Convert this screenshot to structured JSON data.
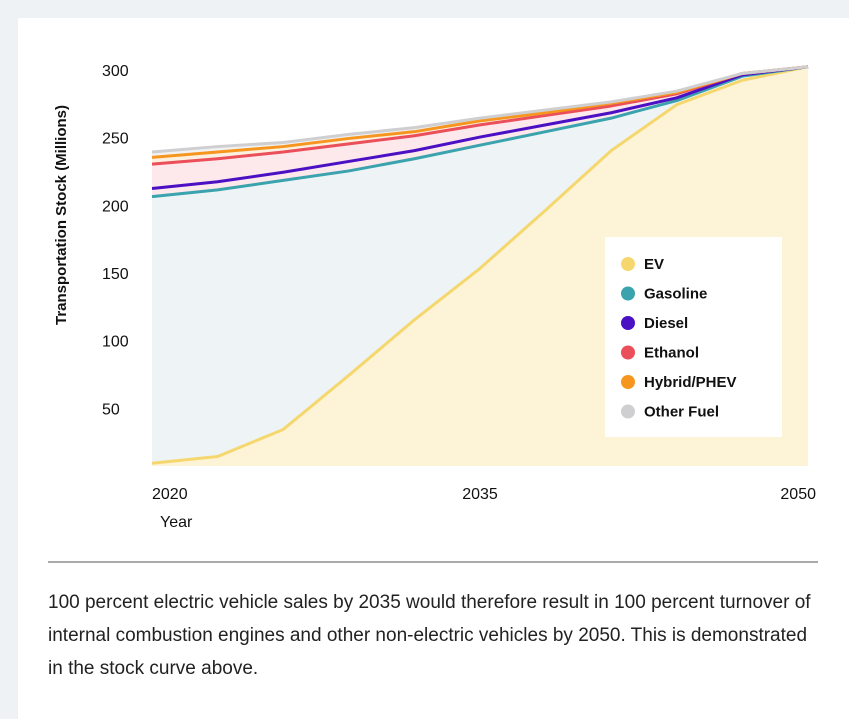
{
  "chart_data": {
    "type": "stacked_area",
    "x": [
      2020,
      2023,
      2026,
      2029,
      2032,
      2035,
      2038,
      2041,
      2044,
      2047,
      2050
    ],
    "series": [
      {
        "name": "EV",
        "color": "#f5d76e",
        "fill": "#fdf4d8",
        "values": [
          10,
          15,
          35,
          75,
          116,
          154,
          197,
          241,
          275,
          293,
          303
        ]
      },
      {
        "name": "Gasoline",
        "color": "#3aa3ad",
        "fill": "#eef4f6",
        "values": [
          197,
          197,
          184,
          151,
          119,
          91,
          58,
          24,
          3,
          3,
          0
        ]
      },
      {
        "name": "Diesel",
        "color": "#4b0fc4",
        "fill": "#fde8ec",
        "values": [
          6,
          6,
          6,
          7,
          6,
          6,
          5,
          4,
          2,
          1,
          0
        ]
      },
      {
        "name": "Ethanol",
        "color": "#ea4f5a",
        "fill": "#fde8ec",
        "values": [
          18,
          17,
          15,
          13,
          11,
          9,
          7,
          5,
          3,
          1,
          0
        ]
      },
      {
        "name": "Hybrid/PHEV",
        "color": "#f7961f",
        "fill": "#fef0df",
        "values": [
          5,
          5,
          4,
          4,
          3,
          3,
          2,
          2,
          1,
          0,
          0
        ]
      },
      {
        "name": "Other Fuel",
        "color": "#cfcfd2",
        "fill": "#f2f2f3",
        "values": [
          4,
          4,
          3,
          3,
          3,
          2,
          2,
          1,
          1,
          0,
          0
        ]
      }
    ],
    "xlim": [
      2020,
      2050
    ],
    "xticks": [
      2020,
      2035,
      2050
    ],
    "ylim": [
      8,
      305
    ],
    "yticks": [
      50,
      100,
      150,
      200,
      250,
      300
    ],
    "x_label": "Year",
    "y_label": "Transportation Stock (Millions)",
    "legend": "lower right"
  },
  "caption": "100 percent electric vehicle sales by 2035 would therefore result in 100 percent turnover of internal combustion engines and other non-electric vehicles by 2050. This is demonstrated in the stock curve above."
}
